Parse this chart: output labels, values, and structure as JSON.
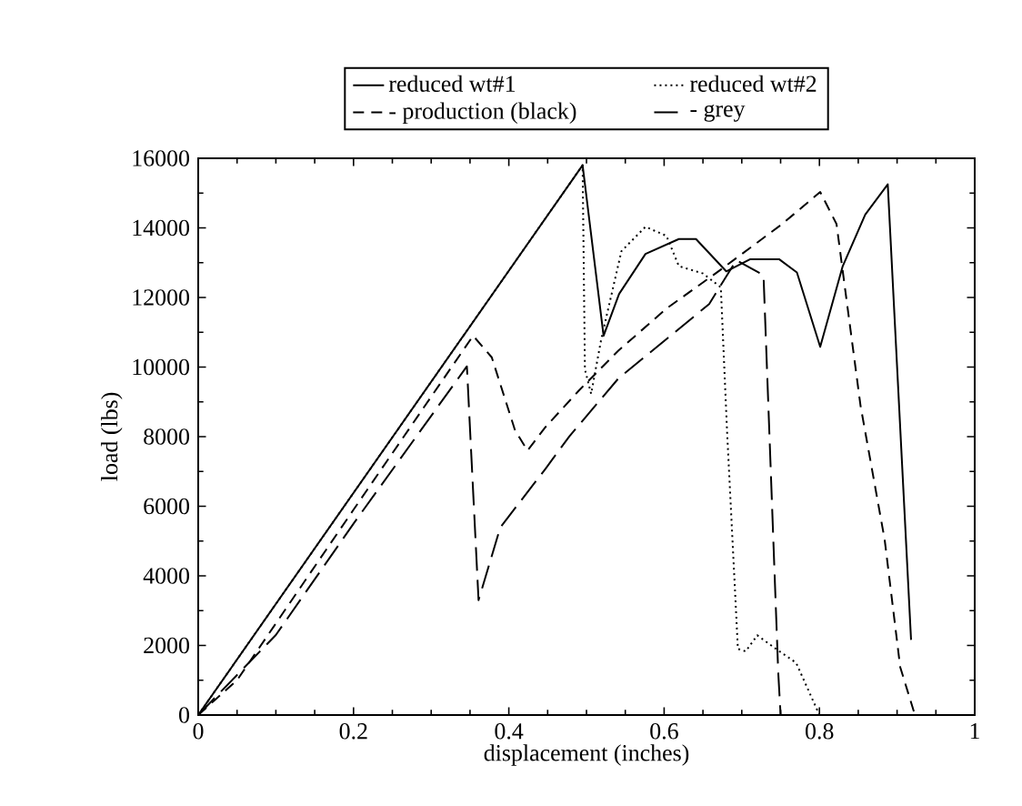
{
  "chart_data": {
    "type": "line",
    "xlabel": "displacement (inches)",
    "ylabel": "load (lbs)",
    "xlim": [
      0,
      1
    ],
    "ylim": [
      0,
      16000
    ],
    "xticks": [
      0,
      0.2,
      0.4,
      0.6,
      0.8,
      1
    ],
    "yticks": [
      0,
      2000,
      4000,
      6000,
      8000,
      10000,
      12000,
      14000,
      16000
    ],
    "grid": false,
    "legend": "top",
    "marker": "none",
    "series": [
      {
        "name": "reduced wt#1",
        "color": "#000000",
        "line_style": "solid",
        "x": [
          0,
          0.495,
          0.522,
          0.542,
          0.576,
          0.619,
          0.641,
          0.68,
          0.711,
          0.748,
          0.771,
          0.801,
          0.83,
          0.859,
          0.888,
          0.918
        ],
        "values": [
          0,
          15800,
          10900,
          12100,
          13250,
          13680,
          13680,
          12750,
          13100,
          13100,
          12720,
          10580,
          12900,
          14380,
          15250,
          2160
        ]
      },
      {
        "name": "reduced wt#2",
        "color": "#000000",
        "line_style": "dotted",
        "x": [
          0,
          0.495,
          0.498,
          0.506,
          0.519,
          0.545,
          0.576,
          0.603,
          0.619,
          0.65,
          0.673,
          0.681,
          0.695,
          0.705,
          0.72,
          0.744,
          0.77,
          0.8
        ],
        "values": [
          0,
          15800,
          9930,
          9230,
          10800,
          13330,
          14030,
          13770,
          12900,
          12690,
          12290,
          8180,
          1900,
          1830,
          2290,
          1900,
          1500,
          0
        ]
      },
      {
        "name": "- production (black)",
        "color": "#000000",
        "line_style": "dashed",
        "x": [
          0,
          0.05,
          0.2,
          0.354,
          0.378,
          0.408,
          0.424,
          0.447,
          0.49,
          0.541,
          0.603,
          0.673,
          0.752,
          0.801,
          0.822,
          0.853,
          0.884,
          0.904,
          0.923
        ],
        "values": [
          0,
          1000,
          5900,
          10900,
          10280,
          8180,
          7600,
          8270,
          9320,
          10470,
          11680,
          12800,
          14110,
          15030,
          14110,
          8880,
          5040,
          1380,
          0
        ]
      },
      {
        "name": "- grey",
        "color": "#000000",
        "line_style": "longdash",
        "x": [
          0,
          0.1,
          0.2,
          0.346,
          0.361,
          0.389,
          0.447,
          0.478,
          0.541,
          0.658,
          0.693,
          0.728,
          0.747,
          0.75
        ],
        "values": [
          0,
          2300,
          5500,
          10020,
          3300,
          5390,
          7070,
          8010,
          9670,
          11810,
          13070,
          12640,
          1200,
          0
        ]
      }
    ]
  }
}
